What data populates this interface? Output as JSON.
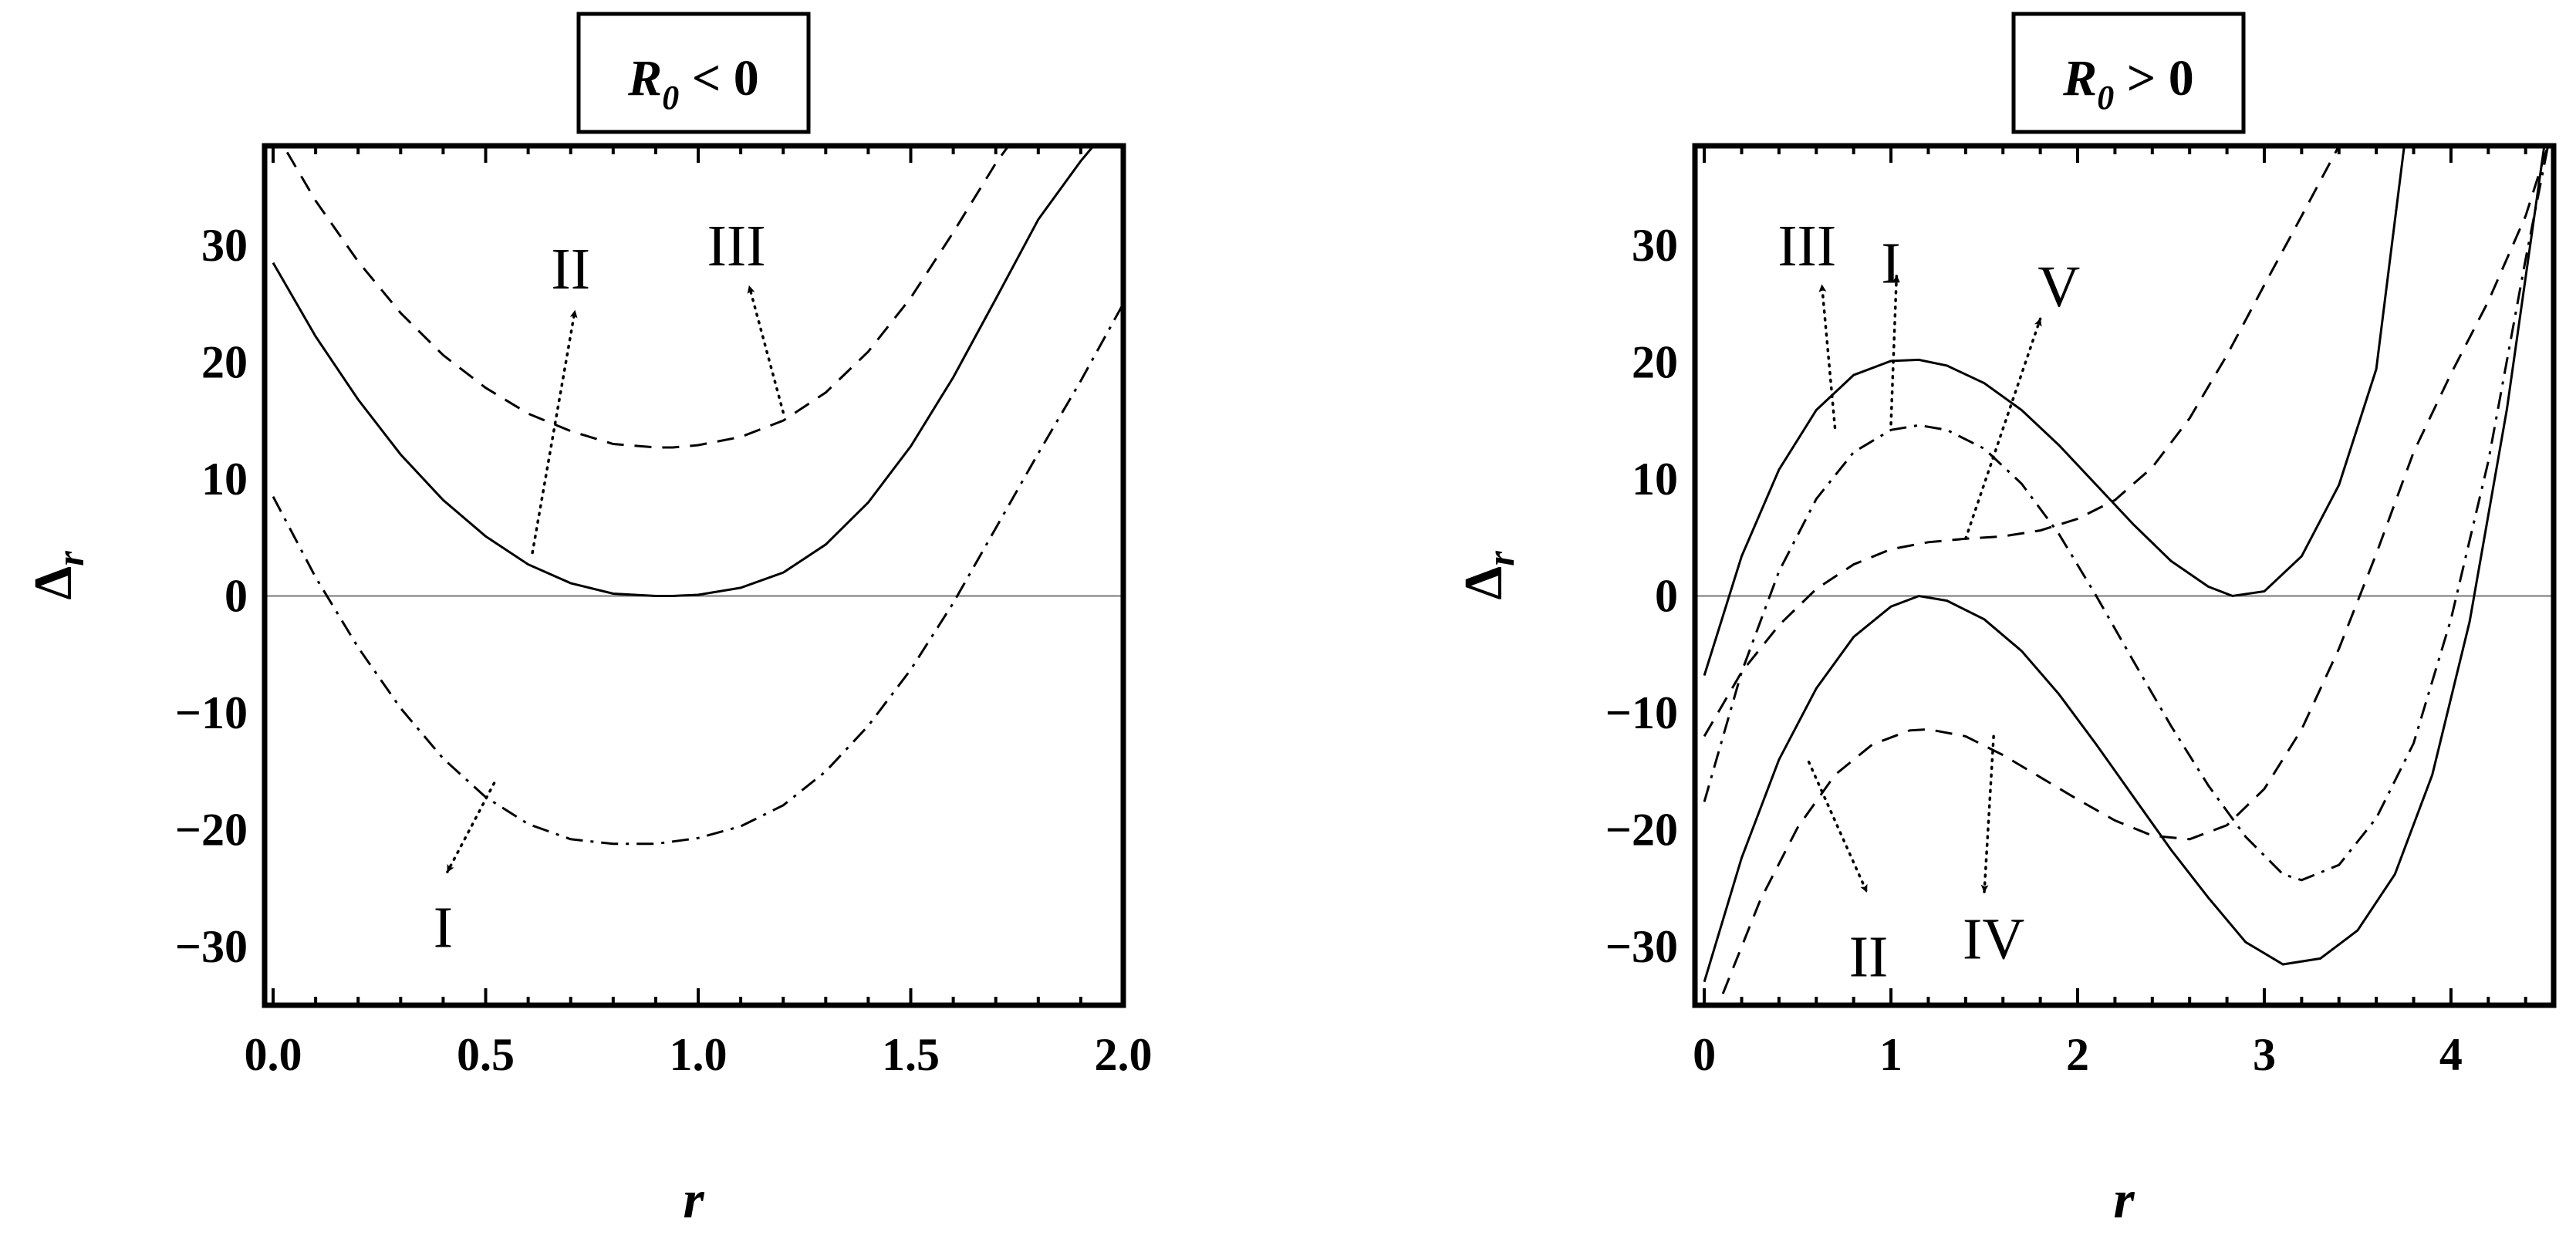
{
  "chart_data": [
    {
      "type": "line",
      "title": "R0 < 0",
      "title_parts": {
        "symbol": "R",
        "sub": "0",
        "rest": " < 0"
      },
      "xlabel": "r",
      "ylabel": "Δr",
      "ylabel_parts": {
        "symbol": "Δ",
        "sub": "r"
      },
      "xlim": [
        -0.02,
        2.0
      ],
      "ylim": [
        -35,
        38.5
      ],
      "xticks": [
        0.0,
        0.5,
        1.0,
        1.5,
        2.0
      ],
      "xtick_labels": [
        "0.0",
        "0.5",
        "1.0",
        "1.5",
        "2.0"
      ],
      "yticks": [
        -30,
        -20,
        -10,
        0,
        10,
        20,
        30
      ],
      "ytick_labels": [
        "−30",
        "−20",
        "−10",
        "0",
        "10",
        "20",
        "30"
      ],
      "grid": false,
      "series": [
        {
          "name": "I",
          "style": "dashdot",
          "x": [
            0.0,
            0.1,
            0.2,
            0.3,
            0.4,
            0.5,
            0.6,
            0.7,
            0.8,
            0.9,
            0.94,
            1.0,
            1.1,
            1.2,
            1.3,
            1.4,
            1.5,
            1.6,
            1.7,
            1.8,
            1.9,
            2.0
          ],
          "y": [
            8.5,
            1.6,
            -4.4,
            -9.6,
            -13.9,
            -17.2,
            -19.5,
            -20.8,
            -21.2,
            -21.2,
            -21.0,
            -20.7,
            -19.7,
            -17.9,
            -15.0,
            -11.1,
            -6.3,
            -0.6,
            5.8,
            12.2,
            18.4,
            25.0
          ]
        },
        {
          "name": "II",
          "style": "solid",
          "x": [
            0.0,
            0.1,
            0.2,
            0.3,
            0.4,
            0.5,
            0.6,
            0.7,
            0.8,
            0.9,
            0.94,
            1.0,
            1.1,
            1.2,
            1.3,
            1.4,
            1.5,
            1.6,
            1.7,
            1.8,
            1.9,
            1.93
          ],
          "y": [
            28.5,
            22.2,
            16.8,
            12.1,
            8.2,
            5.1,
            2.7,
            1.1,
            0.2,
            0.0,
            0.0,
            0.1,
            0.7,
            2.0,
            4.4,
            8.0,
            12.8,
            18.7,
            25.4,
            32.2,
            37.2,
            38.5
          ]
        },
        {
          "name": "III",
          "style": "dashed",
          "x": [
            0.0,
            0.1,
            0.2,
            0.3,
            0.4,
            0.5,
            0.6,
            0.7,
            0.8,
            0.9,
            0.94,
            1.0,
            1.1,
            1.2,
            1.3,
            1.4,
            1.5,
            1.6,
            1.7,
            1.73
          ],
          "y": [
            40.0,
            33.8,
            28.6,
            24.2,
            20.6,
            17.8,
            15.6,
            14.1,
            13.0,
            12.7,
            12.7,
            12.9,
            13.6,
            15.0,
            17.4,
            20.9,
            25.5,
            31.1,
            37.0,
            38.5
          ]
        }
      ],
      "annotations": [
        {
          "text": "I",
          "label_at": [
            0.4,
            -28.3
          ],
          "from": [
            0.52,
            -16.0
          ],
          "to": [
            0.41,
            -23.6
          ]
        },
        {
          "text": "II",
          "label_at": [
            0.7,
            28.0
          ],
          "from": [
            0.61,
            3.7
          ],
          "to": [
            0.71,
            24.4
          ]
        },
        {
          "text": "III",
          "label_at": [
            1.09,
            30.0
          ],
          "from": [
            1.2,
            15.7
          ],
          "to": [
            1.12,
            26.5
          ]
        }
      ]
    },
    {
      "type": "line",
      "title": "R0 > 0",
      "title_parts": {
        "symbol": "R",
        "sub": "0",
        "rest": " > 0"
      },
      "xlabel": "r",
      "ylabel": "Δr",
      "ylabel_parts": {
        "symbol": "Δ",
        "sub": "r"
      },
      "xlim": [
        -0.05,
        4.55
      ],
      "ylim": [
        -35,
        38.5
      ],
      "xticks": [
        0,
        1,
        2,
        3,
        4
      ],
      "xtick_labels": [
        "0",
        "1",
        "2",
        "3",
        "4"
      ],
      "yticks": [
        -30,
        -20,
        -10,
        0,
        10,
        20,
        30
      ],
      "ytick_labels": [
        "−30",
        "−20",
        "−10",
        "0",
        "10",
        "20",
        "30"
      ],
      "grid": false,
      "series": [
        {
          "name": "I",
          "style": "solid",
          "x": [
            0.0,
            0.2,
            0.4,
            0.6,
            0.8,
            1.0,
            1.15,
            1.3,
            1.5,
            1.7,
            1.9,
            2.1,
            2.3,
            2.5,
            2.7,
            2.83,
            3.0,
            3.2,
            3.4,
            3.6,
            3.75
          ],
          "y": [
            -6.8,
            3.4,
            10.8,
            15.9,
            18.9,
            20.1,
            20.2,
            19.7,
            18.2,
            15.9,
            12.9,
            9.5,
            6.1,
            3.0,
            0.8,
            0.0,
            0.4,
            3.4,
            9.5,
            19.4,
            38.5
          ]
        },
        {
          "name": "II",
          "style": "solid",
          "x": [
            0.0,
            0.2,
            0.4,
            0.6,
            0.8,
            1.0,
            1.15,
            1.3,
            1.5,
            1.7,
            1.9,
            2.1,
            2.3,
            2.5,
            2.7,
            2.9,
            3.1,
            3.3,
            3.5,
            3.7,
            3.9,
            4.1,
            4.3,
            4.5
          ],
          "y": [
            -33.0,
            -22.4,
            -14.0,
            -7.9,
            -3.5,
            -0.9,
            0.0,
            -0.4,
            -2.0,
            -4.7,
            -8.4,
            -12.7,
            -17.2,
            -21.7,
            -25.8,
            -29.6,
            -31.5,
            -31.0,
            -28.6,
            -23.8,
            -15.3,
            -2.2,
            16.0,
            38.5
          ]
        },
        {
          "name": "III",
          "style": "dashdot",
          "x": [
            0.0,
            0.2,
            0.4,
            0.6,
            0.8,
            1.0,
            1.15,
            1.3,
            1.5,
            1.7,
            1.9,
            2.1,
            2.3,
            2.5,
            2.7,
            2.9,
            3.1,
            3.2,
            3.4,
            3.6,
            3.8,
            4.0,
            4.2,
            4.4,
            4.52
          ],
          "y": [
            -17.6,
            -6.5,
            2.1,
            8.3,
            12.3,
            14.2,
            14.6,
            14.2,
            12.6,
            9.6,
            5.3,
            0.0,
            -5.6,
            -11.1,
            -16.2,
            -20.6,
            -23.8,
            -24.3,
            -23.0,
            -19.0,
            -12.6,
            -2.0,
            11.5,
            28.8,
            38.5
          ]
        },
        {
          "name": "IV",
          "style": "dashed",
          "x": [
            0.0,
            0.1,
            0.3,
            0.5,
            0.7,
            0.9,
            1.1,
            1.2,
            1.4,
            1.6,
            1.8,
            2.0,
            2.2,
            2.4,
            2.6,
            2.8,
            3.0,
            3.2,
            3.4,
            3.6,
            3.8,
            4.0,
            4.2,
            4.4,
            4.52
          ],
          "y": [
            -38.5,
            -34.0,
            -26.0,
            -19.8,
            -15.3,
            -12.7,
            -11.5,
            -11.4,
            -12.0,
            -13.6,
            -15.5,
            -17.4,
            -19.2,
            -20.5,
            -20.8,
            -19.6,
            -16.5,
            -11.4,
            -4.5,
            3.6,
            12.3,
            19.0,
            25.2,
            32.5,
            38.5
          ]
        },
        {
          "name": "V",
          "style": "dashed",
          "x": [
            0.0,
            0.2,
            0.4,
            0.6,
            0.8,
            1.0,
            1.2,
            1.4,
            1.6,
            1.8,
            2.0,
            2.2,
            2.4,
            2.6,
            2.8,
            3.0,
            3.2,
            3.4
          ],
          "y": [
            -12.0,
            -6.5,
            -2.5,
            0.6,
            2.7,
            4.0,
            4.6,
            4.9,
            5.1,
            5.6,
            6.6,
            8.2,
            11.0,
            15.2,
            20.6,
            26.6,
            32.5,
            38.5
          ]
        }
      ],
      "annotations": [
        {
          "text": "III",
          "label_at": [
            0.55,
            30.0
          ],
          "from": [
            0.7,
            14.4
          ],
          "to": [
            0.63,
            26.6
          ]
        },
        {
          "text": "I",
          "label_at": [
            1.0,
            28.5
          ],
          "from": [
            1.0,
            14.7
          ],
          "to": [
            1.03,
            27.4
          ]
        },
        {
          "text": "V",
          "label_at": [
            1.9,
            26.5
          ],
          "from": [
            1.4,
            4.9
          ],
          "to": [
            1.8,
            23.7
          ]
        },
        {
          "text": "II",
          "label_at": [
            0.88,
            -30.8
          ],
          "from": [
            0.56,
            -14.2
          ],
          "to": [
            0.87,
            -25.3
          ]
        },
        {
          "text": "IV",
          "label_at": [
            1.55,
            -29.3
          ],
          "from": [
            1.55,
            -12.0
          ],
          "to": [
            1.5,
            -25.3
          ]
        }
      ]
    }
  ]
}
